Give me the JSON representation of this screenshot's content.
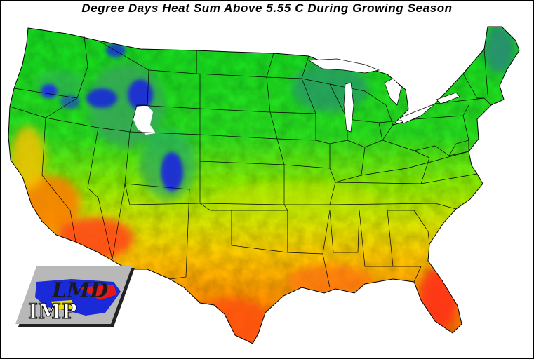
{
  "title": "Degree Days Heat Sum Above 5.55 C During Growing Season",
  "map": {
    "region": "contiguous-united-states",
    "variable": "growing-season-degree-days",
    "color_scale": [
      "#ffffff",
      "#1a1ad8",
      "#23a06a",
      "#00e040",
      "#b8f000",
      "#ffd800",
      "#ffa000",
      "#ff5a10",
      "#f01a1a"
    ],
    "legend_shown": false
  },
  "logo": {
    "top_text": "LMD",
    "bottom_text": "IMP",
    "icon": "map-logo-icon",
    "colors": {
      "panel": "#b8b8b8",
      "shadow": "#222222",
      "blue": "#1a2ad8",
      "red": "#e01a1a",
      "yellow": "#f0e000"
    }
  }
}
